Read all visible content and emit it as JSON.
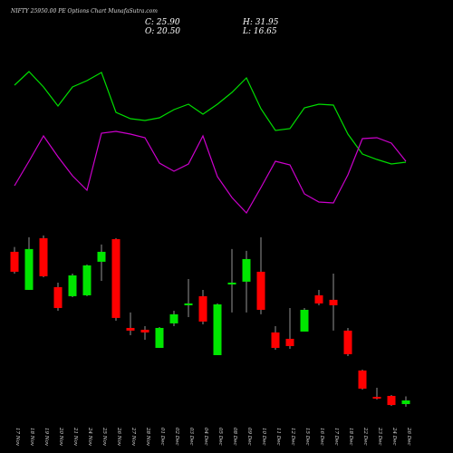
{
  "chart_data": [
    {
      "type": "candlestick",
      "title": "NIFTY 25950.00 PE Options Chart MunafaSutra.com",
      "ohlc_labels": [
        "C: 25.90",
        "H: 31.95",
        "O: 20.50",
        "L: 16.65"
      ],
      "categories": [
        "17 Nov",
        "18 Nov",
        "19 Nov",
        "20 Nov",
        "21 Nov",
        "24 Nov",
        "25 Nov",
        "26 Nov",
        "27 Nov",
        "28 Nov",
        "01 Dec",
        "02 Dec",
        "03 Dec",
        "04 Dec",
        "05 Dec",
        "08 Dec",
        "09 Dec",
        "10 Dec",
        "11 Dec",
        "12 Dec",
        "15 Dec",
        "16 Dec",
        "17 Dec",
        "18 Dec",
        "22 Dec",
        "23 Dec",
        "24 Dec",
        "26 Dec"
      ],
      "open": [
        247.3,
        190.6,
        267.6,
        194.7,
        181.2,
        182.5,
        232.5,
        266.2,
        133.9,
        131.2,
        104.2,
        140.7,
        167.7,
        181.2,
        93.4,
        198.7,
        202.8,
        217.6,
        127.2,
        117.7,
        128.5,
        182.5,
        175.8,
        129.9,
        70.5,
        31.3,
        32.7,
        20.5
      ],
      "high": [
        254.4,
        268.9,
        271.6,
        201.4,
        214.9,
        228.4,
        258.1,
        267.6,
        156.9,
        136.6,
        135.2,
        159.5,
        206.8,
        190.6,
        170.4,
        251.4,
        248.7,
        268.9,
        136.6,
        163.6,
        163.6,
        190.6,
        214.9,
        133.9,
        71.8,
        44.8,
        34.0,
        31.95
      ],
      "low": [
        214.9,
        190.6,
        209.5,
        159.5,
        179.8,
        181.2,
        204.1,
        144.7,
        123.1,
        116.4,
        104.2,
        136.6,
        150.1,
        139.3,
        93.4,
        156.9,
        156.9,
        154.2,
        101.5,
        102.9,
        128.5,
        167.7,
        129.9,
        92.1,
        42.1,
        27.2,
        17.8,
        16.65
      ],
      "close": [
        217.6,
        251.4,
        210.9,
        163.6,
        212.2,
        227.1,
        247.3,
        148.8,
        129.9,
        127.2,
        133.9,
        154.2,
        170.4,
        143.4,
        169.0,
        201.4,
        236.5,
        160.9,
        104.2,
        106.9,
        160.9,
        170.4,
        167.7,
        94.8,
        43.5,
        28.6,
        19.1,
        25.9
      ],
      "up_color": "#00e600",
      "down_color": "#ff0000",
      "wick_color": "#bbbbbb",
      "ylim": [
        0,
        285
      ]
    },
    {
      "type": "line",
      "ylim": [
        0,
        300
      ],
      "series": [
        {
          "color": "#00dd00",
          "values": [
            206,
            221,
            204,
            183,
            204,
            211,
            220,
            176,
            169,
            167,
            170,
            179,
            185,
            174,
            185,
            198,
            214,
            180,
            156,
            158,
            181,
            185,
            184,
            152,
            130,
            124,
            119,
            121
          ]
        },
        {
          "color": "#cc00cc",
          "values": [
            95,
            122,
            150,
            127,
            106,
            90,
            153,
            155,
            152,
            148,
            120,
            111,
            119,
            150,
            105,
            82,
            65,
            93,
            122,
            118,
            86,
            77,
            76,
            107,
            147,
            148,
            142,
            122
          ]
        }
      ]
    }
  ]
}
